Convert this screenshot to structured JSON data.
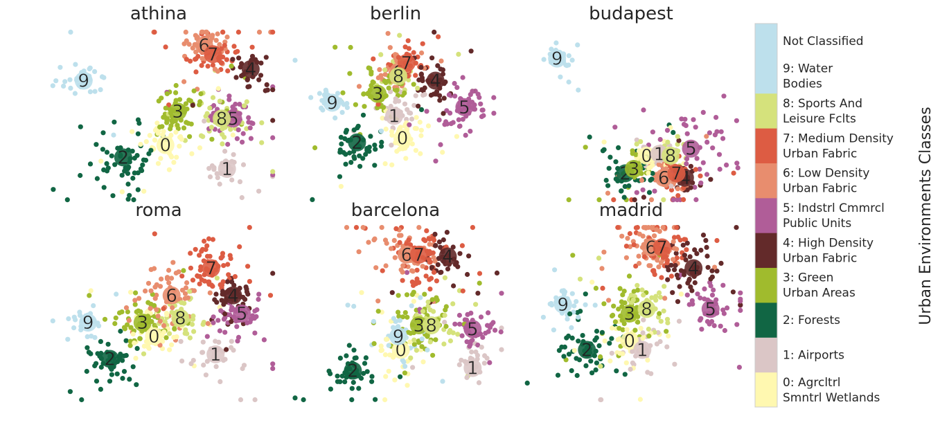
{
  "chart_data": {
    "type": "scatter",
    "grid": false,
    "axes_visible": false,
    "colorbar": {
      "label": "Urban Environments Classes",
      "position": "right",
      "classes": [
        {
          "id": "0",
          "label": "0: Agrcltrl Smntrl Wetlands",
          "lines": [
            "0: Agrcltrl",
            "Smntrl Wetlands"
          ],
          "color": "#fff8b0"
        },
        {
          "id": "1",
          "label": "1: Airports",
          "lines": [
            "1: Airports"
          ],
          "color": "#dbc6c6"
        },
        {
          "id": "2",
          "label": "2: Forests",
          "lines": [
            "2: Forests"
          ],
          "color": "#116644"
        },
        {
          "id": "3",
          "label": "3: Green Urban Areas",
          "lines": [
            "3: Green",
            "Urban Areas"
          ],
          "color": "#a0bb2d"
        },
        {
          "id": "4",
          "label": "4: High Density Urban Fabric",
          "lines": [
            "4: High Density",
            "Urban Fabric"
          ],
          "color": "#632a2a"
        },
        {
          "id": "5",
          "label": "5: Indstrl Cmmrcl Public Units",
          "lines": [
            "5: Indstrl Cmmrcl",
            "Public Units"
          ],
          "color": "#b05d98"
        },
        {
          "id": "6",
          "label": "6: Low Density Urban Fabric",
          "lines": [
            "6: Low Density",
            "Urban Fabric"
          ],
          "color": "#e88d6e"
        },
        {
          "id": "7",
          "label": "7: Medium Density Urban Fabric",
          "lines": [
            "7: Medium Density",
            "Urban Fabric"
          ],
          "color": "#dd5c43"
        },
        {
          "id": "8",
          "label": "8: Sports And Leisure Fclts",
          "lines": [
            "8: Sports And",
            "Leisure Fclts"
          ],
          "color": "#d5e27c"
        },
        {
          "id": "9",
          "label": "9: Water Bodies",
          "lines": [
            "9: Water",
            "Bodies"
          ],
          "color": "#bde0ec"
        },
        {
          "id": "nc",
          "label": "Not Classified",
          "lines": [
            "Not Classified"
          ],
          "color": "#bde0ec"
        }
      ]
    },
    "panels": [
      {
        "title": "athina",
        "centroids": {
          "9": [
            -0.85,
            0.45
          ],
          "3": [
            0.22,
            0.1
          ],
          "0": [
            0.08,
            -0.28
          ],
          "2": [
            -0.4,
            -0.42
          ],
          "6": [
            0.52,
            0.85
          ],
          "7": [
            0.62,
            0.75
          ],
          "4": [
            1.05,
            0.58
          ],
          "8": [
            0.72,
            0.02
          ],
          "5": [
            0.85,
            0.02
          ],
          "1": [
            0.78,
            -0.55
          ]
        },
        "spread": {
          "9": 0.12,
          "3": 0.18,
          "0": 0.15,
          "2": 0.22,
          "6": 0.13,
          "7": 0.14,
          "4": 0.12,
          "8": 0.14,
          "5": 0.15,
          "1": 0.12
        },
        "counts": {
          "9": 30,
          "3": 55,
          "0": 40,
          "2": 50,
          "6": 50,
          "7": 45,
          "4": 30,
          "8": 40,
          "5": 45,
          "1": 25
        }
      },
      {
        "title": "berlin",
        "centroids": {
          "9": [
            -0.75,
            0.2
          ],
          "3": [
            -0.2,
            0.3
          ],
          "2": [
            -0.45,
            -0.25
          ],
          "1": [
            0.0,
            0.05
          ],
          "0": [
            0.1,
            -0.2
          ],
          "6": [
            0.05,
            0.55
          ],
          "7": [
            0.15,
            0.65
          ],
          "8": [
            0.05,
            0.5
          ],
          "4": [
            0.5,
            0.45
          ],
          "5": [
            0.85,
            0.15
          ]
        },
        "spread": {
          "9": 0.12,
          "3": 0.17,
          "2": 0.15,
          "1": 0.14,
          "0": 0.16,
          "6": 0.12,
          "7": 0.12,
          "8": 0.1,
          "4": 0.16,
          "5": 0.2
        },
        "counts": {
          "9": 25,
          "3": 55,
          "2": 40,
          "1": 35,
          "0": 40,
          "6": 40,
          "7": 35,
          "8": 25,
          "4": 40,
          "5": 50
        }
      },
      {
        "title": "budapest",
        "centroids": {
          "9": [
            -0.85,
            0.7
          ],
          "3": [
            0.05,
            -0.55
          ],
          "2": [
            -0.05,
            -0.6
          ],
          "0": [
            0.2,
            -0.4
          ],
          "1": [
            0.35,
            -0.38
          ],
          "8": [
            0.48,
            -0.4
          ],
          "5": [
            0.72,
            -0.32
          ],
          "6": [
            0.4,
            -0.65
          ],
          "7": [
            0.55,
            -0.6
          ],
          "4": [
            0.65,
            -0.65
          ]
        },
        "spread": {
          "9": 0.1,
          "3": 0.1,
          "2": 0.18,
          "0": 0.1,
          "1": 0.1,
          "8": 0.1,
          "5": 0.35,
          "6": 0.12,
          "7": 0.13,
          "4": 0.12
        },
        "counts": {
          "9": 25,
          "3": 30,
          "2": 35,
          "0": 25,
          "1": 20,
          "8": 25,
          "5": 45,
          "6": 30,
          "7": 30,
          "4": 30
        }
      },
      {
        "title": "roma",
        "centroids": {
          "9": [
            -0.8,
            -0.05
          ],
          "3": [
            -0.18,
            -0.05
          ],
          "0": [
            -0.05,
            -0.2
          ],
          "2": [
            -0.55,
            -0.45
          ],
          "6": [
            0.15,
            0.25
          ],
          "8": [
            0.25,
            0.0
          ],
          "7": [
            0.6,
            0.55
          ],
          "4": [
            0.85,
            0.25
          ],
          "5": [
            0.95,
            0.05
          ],
          "1": [
            0.65,
            -0.4
          ]
        },
        "spread": {
          "9": 0.1,
          "3": 0.15,
          "0": 0.15,
          "2": 0.15,
          "6": 0.2,
          "8": 0.14,
          "7": 0.15,
          "4": 0.13,
          "5": 0.15,
          "1": 0.18
        },
        "counts": {
          "9": 25,
          "3": 50,
          "0": 40,
          "2": 45,
          "6": 55,
          "8": 40,
          "7": 55,
          "4": 45,
          "5": 40,
          "1": 25
        }
      },
      {
        "title": "barcelona",
        "centroids": {
          "6": [
            0.15,
            0.7
          ],
          "7": [
            0.3,
            0.7
          ],
          "4": [
            0.65,
            0.68
          ],
          "3": [
            0.3,
            -0.08
          ],
          "8": [
            0.45,
            -0.08
          ],
          "9": [
            0.05,
            -0.2
          ],
          "0": [
            0.08,
            -0.35
          ],
          "5": [
            0.95,
            -0.12
          ],
          "1": [
            0.95,
            -0.55
          ],
          "2": [
            -0.5,
            -0.58
          ]
        },
        "spread": {
          "6": 0.18,
          "7": 0.2,
          "4": 0.16,
          "3": 0.22,
          "8": 0.15,
          "9": 0.2,
          "0": 0.16,
          "5": 0.13,
          "1": 0.15,
          "2": 0.14
        },
        "counts": {
          "6": 50,
          "7": 55,
          "4": 35,
          "3": 55,
          "8": 35,
          "9": 30,
          "0": 30,
          "5": 40,
          "1": 25,
          "2": 45
        }
      },
      {
        "title": "madrid",
        "centroids": {
          "9": [
            -0.78,
            0.15
          ],
          "6": [
            0.25,
            0.78
          ],
          "7": [
            0.38,
            0.78
          ],
          "4": [
            0.75,
            0.55
          ],
          "5": [
            0.95,
            0.1
          ],
          "3": [
            0.0,
            0.05
          ],
          "8": [
            0.2,
            0.1
          ],
          "0": [
            0.0,
            -0.25
          ],
          "1": [
            0.15,
            -0.35
          ],
          "2": [
            -0.5,
            -0.35
          ]
        },
        "spread": {
          "9": 0.12,
          "6": 0.2,
          "7": 0.2,
          "4": 0.16,
          "5": 0.14,
          "3": 0.17,
          "8": 0.14,
          "0": 0.17,
          "1": 0.15,
          "2": 0.17
        },
        "counts": {
          "9": 25,
          "6": 55,
          "7": 50,
          "4": 45,
          "5": 40,
          "3": 50,
          "8": 35,
          "0": 40,
          "1": 30,
          "2": 50
        }
      }
    ]
  }
}
